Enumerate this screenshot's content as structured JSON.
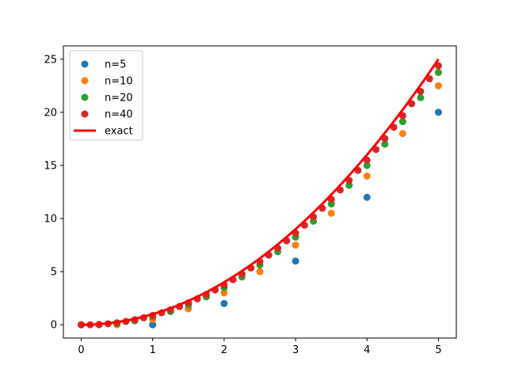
{
  "chart_data": {
    "type": "scatter",
    "title": "",
    "xlabel": "",
    "ylabel": "",
    "xlim": [
      -0.25,
      5.25
    ],
    "ylim": [
      -1.25,
      26.25
    ],
    "xticks": [
      0,
      1,
      2,
      3,
      4,
      5
    ],
    "yticks": [
      0,
      5,
      10,
      15,
      20,
      25
    ],
    "grid": false,
    "legend_position": "top-left",
    "series": [
      {
        "name": "n=5",
        "kind": "scatter",
        "color": "#1f77b4",
        "x": [
          0,
          1,
          2,
          3,
          4,
          5
        ],
        "y": [
          0,
          0,
          2,
          6,
          12,
          20
        ]
      },
      {
        "name": "n=10",
        "kind": "scatter",
        "color": "#ff7f0e",
        "x": [
          0,
          0.5,
          1,
          1.5,
          2,
          2.5,
          3,
          3.5,
          4,
          4.5,
          5
        ],
        "y": [
          0,
          0,
          0.5,
          1.5,
          3,
          5,
          7.5,
          10.5,
          14,
          18,
          22.5
        ]
      },
      {
        "name": "n=20",
        "kind": "scatter",
        "color": "#2ca02c",
        "x": [
          0,
          0.25,
          0.5,
          0.75,
          1,
          1.25,
          1.5,
          1.75,
          2,
          2.25,
          2.5,
          2.75,
          3,
          3.25,
          3.5,
          3.75,
          4,
          4.25,
          4.5,
          4.75,
          5
        ],
        "y": [
          0,
          0,
          0.125,
          0.375,
          0.75,
          1.25,
          1.875,
          2.625,
          3.5,
          4.5,
          5.625,
          6.875,
          8.25,
          9.75,
          11.375,
          13.125,
          15,
          17,
          19.125,
          21.375,
          23.75
        ]
      },
      {
        "name": "n=40",
        "kind": "scatter",
        "color": "#d62728",
        "x": [
          0,
          0.125,
          0.25,
          0.375,
          0.5,
          0.625,
          0.75,
          0.875,
          1,
          1.125,
          1.25,
          1.375,
          1.5,
          1.625,
          1.75,
          1.875,
          2,
          2.125,
          2.25,
          2.375,
          2.5,
          2.625,
          2.75,
          2.875,
          3,
          3.125,
          3.25,
          3.375,
          3.5,
          3.625,
          3.75,
          3.875,
          4,
          4.125,
          4.25,
          4.375,
          4.5,
          4.625,
          4.75,
          4.875,
          5
        ],
        "y": [
          0,
          0,
          0.031,
          0.094,
          0.188,
          0.313,
          0.469,
          0.656,
          0.875,
          1.125,
          1.406,
          1.719,
          2.063,
          2.438,
          2.844,
          3.281,
          3.75,
          4.25,
          4.781,
          5.344,
          5.938,
          6.563,
          7.219,
          7.906,
          8.625,
          9.375,
          10.156,
          10.969,
          11.813,
          12.688,
          13.594,
          14.531,
          15.5,
          16.5,
          17.531,
          18.594,
          19.688,
          20.813,
          21.969,
          23.156,
          24.375
        ]
      },
      {
        "name": "exact",
        "kind": "line",
        "color": "#ff0000",
        "function": "x^2",
        "x_range": [
          0,
          5
        ]
      }
    ]
  }
}
